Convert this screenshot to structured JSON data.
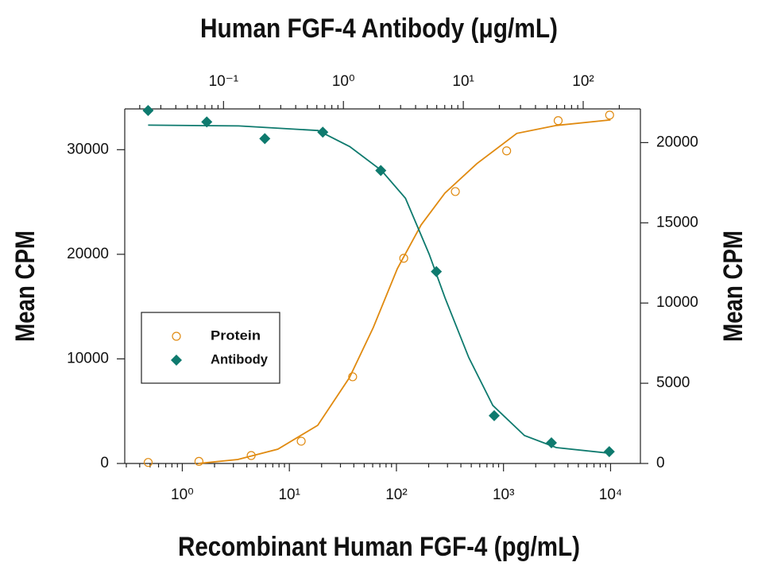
{
  "chart_data": {
    "type": "scatter",
    "x_label": "Recombinant Human FGF-4 (pg/mL)",
    "x2_label": "Human FGF-4 Antibody (μg/mL)",
    "y_label": "Mean CPM",
    "y2_label": "Mean CPM",
    "xscale": "log",
    "x2scale": "log",
    "xlim": [
      0.29,
      19000
    ],
    "xticks": [
      {
        "value": 1,
        "label": "10⁰"
      },
      {
        "value": 10,
        "label": "10¹"
      },
      {
        "value": 100,
        "label": "10²"
      },
      {
        "value": 1000,
        "label": "10³"
      },
      {
        "value": 10000,
        "label": "10⁴"
      }
    ],
    "x2lim": [
      0.015,
      300
    ],
    "x2ticks": [
      {
        "value": 0.1,
        "label": "10⁻¹"
      },
      {
        "value": 1,
        "label": "10⁰"
      },
      {
        "value": 10,
        "label": "10¹"
      },
      {
        "value": 100,
        "label": "10²"
      }
    ],
    "ylim": [
      0,
      33900
    ],
    "yticks": [
      0,
      10000,
      20000,
      30000
    ],
    "y2lim": [
      0,
      22100
    ],
    "y2ticks": [
      0,
      5000,
      10000,
      15000,
      20000
    ],
    "legend": "left",
    "series": [
      {
        "name": "Protein",
        "color": "#e08a10",
        "marker": "circle",
        "x": [
          0.48,
          1.43,
          4.4,
          12.9,
          39,
          117,
          355,
          1070,
          3240,
          9800
        ],
        "values": [
          100,
          200,
          760,
          2130,
          8290,
          19620,
          26000,
          29890,
          32780,
          33310
        ],
        "fit": {
          "x": [
            1.41,
            3.3,
            7.8,
            18.4,
            36.4,
            60.8,
            102,
            170,
            284,
            564,
            1330,
            3120,
            10000
          ],
          "values": [
            0,
            380,
            1370,
            3650,
            8210,
            13000,
            18630,
            22810,
            25860,
            28670,
            31560,
            32320,
            32850
          ]
        }
      },
      {
        "name": "Antibody",
        "color": "#0e7a6e",
        "marker": "diamond",
        "axis": "y2",
        "xaxis": "x2",
        "x": [
          0.0235,
          0.0725,
          0.221,
          0.673,
          2.05,
          5.96,
          18.1,
          54.3,
          165
        ],
        "values": [
          22000,
          21290,
          20250,
          20650,
          18260,
          11960,
          2980,
          1290,
          740
        ],
        "fit": {
          "x": [
            0.0235,
            0.134,
            0.614,
            1.13,
            2.08,
            3.29,
            5.19,
            7.04,
            11.1,
            17.6,
            32.4,
            59.6,
            165
          ],
          "values": [
            21090,
            21040,
            20750,
            19750,
            18260,
            16530,
            13050,
            10320,
            6600,
            3620,
            1740,
            990,
            640
          ]
        }
      }
    ]
  }
}
